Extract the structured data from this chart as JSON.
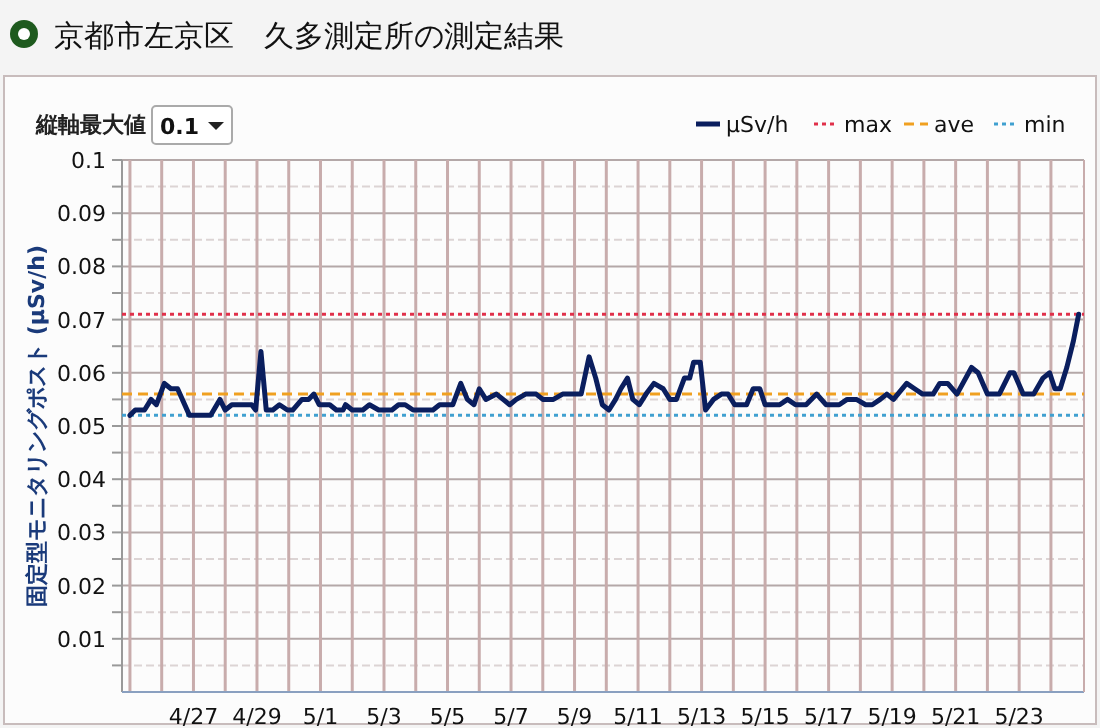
{
  "chart_data": {
    "type": "line",
    "title": "京都市左京区　久多測定所の測定結果",
    "ylabel": "固定型モニタリングポスト (μSv/h)",
    "annotations": [
      "縦軸最大値",
      "0.1"
    ],
    "xlim": [
      "--04-24T18:00",
      "--05-25T01:00"
    ],
    "xticks": [
      {
        "value": "--04-25",
        "label": null
      },
      {
        "value": "--04-26",
        "label": null
      },
      {
        "value": "--04-27",
        "label": "4/27"
      },
      {
        "value": "--04-28",
        "label": null
      },
      {
        "value": "--04-29",
        "label": "4/29"
      },
      {
        "value": "--04-30",
        "label": null
      },
      {
        "value": "--05-01",
        "label": "5/1"
      },
      {
        "value": "--05-02",
        "label": null
      },
      {
        "value": "--05-03",
        "label": "5/3"
      },
      {
        "value": "--05-04",
        "label": null
      },
      {
        "value": "--05-05",
        "label": "5/5"
      },
      {
        "value": "--05-06",
        "label": null
      },
      {
        "value": "--05-07",
        "label": "5/7"
      },
      {
        "value": "--05-08",
        "label": null
      },
      {
        "value": "--05-09",
        "label": "5/9"
      },
      {
        "value": "--05-10",
        "label": null
      },
      {
        "value": "--05-11",
        "label": "5/11"
      },
      {
        "value": "--05-12",
        "label": null
      },
      {
        "value": "--05-13",
        "label": "5/13"
      },
      {
        "value": "--05-14",
        "label": null
      },
      {
        "value": "--05-15",
        "label": "5/15"
      },
      {
        "value": "--05-16",
        "label": null
      },
      {
        "value": "--05-17",
        "label": "5/17"
      },
      {
        "value": "--05-18",
        "label": null
      },
      {
        "value": "--05-19",
        "label": "5/19"
      },
      {
        "value": "--05-20",
        "label": null
      },
      {
        "value": "--05-21",
        "label": "5/21"
      },
      {
        "value": "--05-22",
        "label": null
      },
      {
        "value": "--05-23",
        "label": "5/23"
      },
      {
        "value": "--05-24",
        "label": null
      }
    ],
    "ylim": [
      0,
      0.1
    ],
    "yticks": [
      {
        "value": 0.005,
        "label": null
      },
      0.01,
      {
        "value": 0.015,
        "label": null
      },
      0.02,
      {
        "value": 0.025,
        "label": null
      },
      0.03,
      {
        "value": 0.035,
        "label": null
      },
      0.04,
      {
        "value": 0.045,
        "label": null
      },
      0.05,
      {
        "value": 0.055,
        "label": null
      },
      0.06,
      {
        "value": 0.065,
        "label": null
      },
      0.07,
      {
        "value": 0.075,
        "label": null
      },
      0.08,
      {
        "value": 0.085,
        "label": null
      },
      0.09,
      {
        "value": 0.095,
        "label": null
      },
      0.1
    ],
    "grid": true,
    "legend": "top right",
    "marker": "none",
    "line_style": "solid",
    "ref_lines": [
      {
        "axis": "y",
        "value": 0.071,
        "label": "max",
        "color": "#e0304a",
        "line_style": "dotted"
      },
      {
        "axis": "y",
        "value": 0.056,
        "label": "ave",
        "color": "#f0a020",
        "line_style": "dashed"
      },
      {
        "axis": "y",
        "value": 0.052,
        "label": "min",
        "color": "#40a0d0",
        "line_style": "dotted"
      }
    ],
    "series": [
      {
        "name": "μSv/h",
        "color": "#0a1e5e",
        "x": [
          "--04-25T00:00",
          "--04-25T04:00",
          "--04-25T11:00",
          "--04-25T16:00",
          "--04-25T20:00",
          "--04-26T02:00",
          "--04-26T07:00",
          "--04-26T12:00",
          "--04-26T21:00",
          "--04-27T04:00",
          "--04-27T13:00",
          "--04-27T20:00",
          "--04-28T00:00",
          "--04-28T05:00",
          "--04-28T10:00",
          "--04-28T20:00",
          "--04-28T23:00",
          "--04-29T03:00",
          "--04-29T07:00",
          "--04-29T12:00",
          "--04-29T17:00",
          "--04-29T23:00",
          "--04-30T03:00",
          "--04-30T10:00",
          "--04-30T15:00",
          "--04-30T19:00",
          "--04-30T23:00",
          "--05-01T07:00",
          "--05-01T12:00",
          "--05-01T17:00",
          "--05-01T19:00",
          "--05-02T00:00",
          "--05-02T08:00",
          "--05-02T13:00",
          "--05-02T20:00",
          "--05-03T06:00",
          "--05-03T11:00",
          "--05-03T16:00",
          "--05-03T22:00",
          "--05-04T13:00",
          "--05-04T18:00",
          "--05-05T04:00",
          "--05-05T10:00",
          "--05-05T15:00",
          "--05-05T20:00",
          "--05-06T00:00",
          "--05-06T05:00",
          "--05-06T13:00",
          "--05-06T18:00",
          "--05-06T23:00",
          "--05-07T04:00",
          "--05-07T11:00",
          "--05-07T19:00",
          "--05-08T00:00",
          "--05-08T08:00",
          "--05-08T15:00",
          "--05-08T23:00",
          "--05-09T05:00",
          "--05-09T11:00",
          "--05-09T16:00",
          "--05-09T21:00",
          "--05-10T02:00",
          "--05-10T07:00",
          "--05-10T11:00",
          "--05-10T16:00",
          "--05-10T20:00",
          "--05-11T01:00",
          "--05-11T06:00",
          "--05-11T12:00",
          "--05-11T19:00",
          "--05-12T00:00",
          "--05-12T05:00",
          "--05-12T11:00",
          "--05-12T15:00",
          "--05-12T18:00",
          "--05-12T23:00",
          "--05-13T03:00",
          "--05-13T09:00",
          "--05-13T15:00",
          "--05-13T20:00",
          "--05-14T01:00",
          "--05-14T10:00",
          "--05-14T15:00",
          "--05-14T20:00",
          "--05-15T00:00",
          "--05-15T11:00",
          "--05-15T17:00",
          "--05-15T23:00",
          "--05-16T07:00",
          "--05-16T15:00",
          "--05-16T22:00",
          "--05-17T08:00",
          "--05-17T14:00",
          "--05-17T21:00",
          "--05-18T04:00",
          "--05-18T09:00",
          "--05-18T15:00",
          "--05-18T20:00",
          "--05-19T01:00",
          "--05-19T11:00",
          "--05-19T17:00",
          "--05-19T23:00",
          "--05-20T07:00",
          "--05-20T12:00",
          "--05-20T18:00",
          "--05-21T01:00",
          "--05-21T12:00",
          "--05-21T17:00",
          "--05-22T00:00",
          "--05-22T09:00",
          "--05-22T17:00",
          "--05-22T20:00",
          "--05-23T03:00",
          "--05-23T11:00",
          "--05-23T18:00",
          "--05-23T23:00",
          "--05-24T03:00",
          "--05-24T07:00",
          "--05-24T12:00",
          "--05-24T17:00",
          "--05-24T21:00"
        ],
        "values": [
          0.052,
          0.053,
          0.053,
          0.055,
          0.054,
          0.058,
          0.057,
          0.057,
          0.052,
          0.052,
          0.052,
          0.055,
          0.053,
          0.054,
          0.054,
          0.054,
          0.053,
          0.064,
          0.053,
          0.053,
          0.054,
          0.053,
          0.053,
          0.055,
          0.055,
          0.056,
          0.054,
          0.054,
          0.053,
          0.053,
          0.054,
          0.053,
          0.053,
          0.054,
          0.053,
          0.053,
          0.054,
          0.054,
          0.053,
          0.053,
          0.054,
          0.054,
          0.058,
          0.055,
          0.054,
          0.057,
          0.055,
          0.056,
          0.055,
          0.054,
          0.055,
          0.056,
          0.056,
          0.055,
          0.055,
          0.056,
          0.056,
          0.056,
          0.063,
          0.059,
          0.054,
          0.053,
          0.055,
          0.057,
          0.059,
          0.055,
          0.054,
          0.056,
          0.058,
          0.057,
          0.055,
          0.055,
          0.059,
          0.059,
          0.062,
          0.062,
          0.053,
          0.055,
          0.056,
          0.056,
          0.054,
          0.054,
          0.057,
          0.057,
          0.054,
          0.054,
          0.055,
          0.054,
          0.054,
          0.056,
          0.054,
          0.054,
          0.055,
          0.055,
          0.054,
          0.054,
          0.055,
          0.056,
          0.055,
          0.058,
          0.057,
          0.056,
          0.056,
          0.058,
          0.058,
          0.056,
          0.061,
          0.06,
          0.056,
          0.056,
          0.06,
          0.06,
          0.056,
          0.056,
          0.059,
          0.06,
          0.057,
          0.057,
          0.061,
          0.066,
          0.071
        ]
      }
    ]
  }
}
